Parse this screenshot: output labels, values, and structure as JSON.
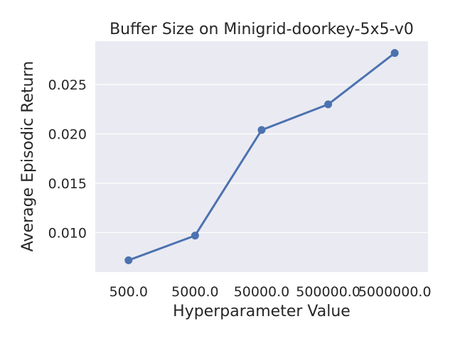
{
  "chart_data": {
    "type": "line",
    "title": "Buffer Size on Minigrid-doorkey-5x5-v0",
    "xlabel": "Hyperparameter Value",
    "ylabel": "Average Episodic Return",
    "categories": [
      "500.0",
      "5000.0",
      "50000.0",
      "500000.0",
      "5000000.0"
    ],
    "series": [
      {
        "values": [
          0.0072,
          0.0097,
          0.0204,
          0.023,
          0.0282
        ],
        "err_low": [
          0.0071,
          0.0096,
          0.0202,
          0.0227,
          0.0279
        ],
        "err_high": [
          0.0073,
          0.0098,
          0.0206,
          0.0233,
          0.0286
        ]
      }
    ],
    "yticks": [
      "0.010",
      "0.015",
      "0.020",
      "0.025"
    ],
    "ytick_values": [
      0.01,
      0.015,
      0.02,
      0.025
    ],
    "ylim": [
      0.006,
      0.0294
    ],
    "grid": true,
    "colors": {
      "line": "#4c72b0",
      "background": "#eaeaf2",
      "grid": "#ffffff"
    }
  }
}
